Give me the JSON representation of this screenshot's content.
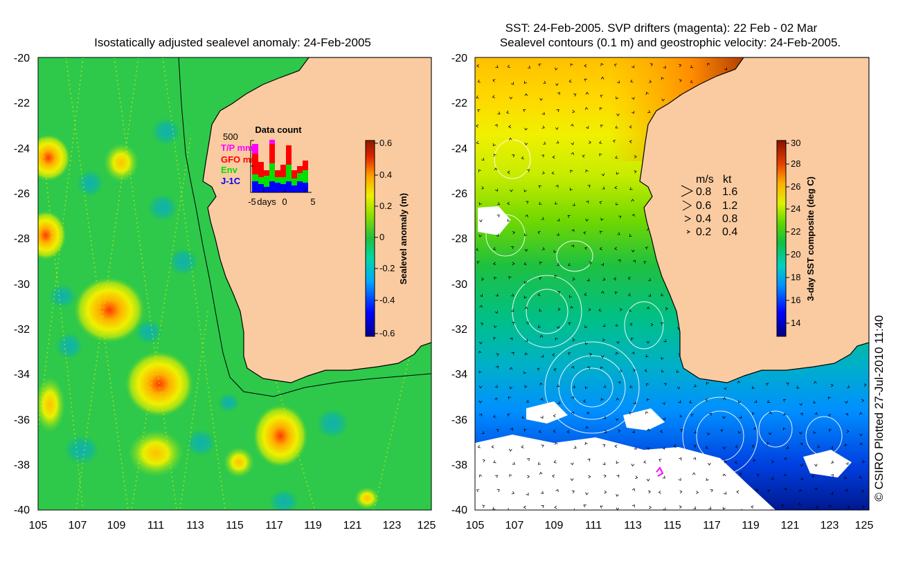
{
  "left_panel": {
    "title": "Isostatically adjusted sealevel anomaly: 24-Feb-2005",
    "lat_labels": [
      "-20",
      "-22",
      "-24",
      "-26",
      "-28",
      "-30",
      "-32",
      "-34",
      "-36",
      "-38",
      "-40"
    ],
    "lon_labels": [
      "105",
      "107",
      "109",
      "111",
      "113",
      "115",
      "117",
      "119",
      "121",
      "123",
      "125"
    ],
    "colorbar": {
      "label": "Sealevel anomaly (m)",
      "ticks": [
        "0.6",
        "0.4",
        "0.2",
        "0",
        "-0.2",
        "-0.4",
        "-0.6"
      ],
      "range": [
        -0.6,
        0.6
      ]
    },
    "inset": {
      "title": "Data count",
      "y_max_label": "500",
      "x_labels": [
        "-5",
        "days",
        "0",
        "5"
      ],
      "legend": [
        {
          "label": "T/P mm",
          "color": "#ff00ff"
        },
        {
          "label": "GFO mm",
          "color": "#ff0000"
        },
        {
          "label": "Env",
          "color": "#00e000"
        },
        {
          "label": "J-1C",
          "color": "#0000ff"
        }
      ]
    }
  },
  "right_panel": {
    "title_line1": "SST: 24-Feb-2005. SVP drifters (magenta): 22 Feb - 02 Mar",
    "title_line2": "Sealevel contours (0.1 m) and geostrophic velocity: 24-Feb-2005.",
    "lat_labels": [
      "-20",
      "-22",
      "-24",
      "-26",
      "-28",
      "-30",
      "-32",
      "-34",
      "-36",
      "-38",
      "-40"
    ],
    "lon_labels": [
      "105",
      "107",
      "109",
      "111",
      "113",
      "115",
      "117",
      "119",
      "121",
      "123",
      "125"
    ],
    "colorbar": {
      "label": "3-day SST composite (deg C)",
      "ticks": [
        "30",
        "28",
        "26",
        "24",
        "22",
        "20",
        "18",
        "16",
        "14"
      ],
      "range": [
        13,
        30
      ]
    },
    "velocity_legend": {
      "headers": [
        "m/s",
        "kt"
      ],
      "rows": [
        {
          "ms": "0.8",
          "kt": "1.6"
        },
        {
          "ms": "0.6",
          "kt": "1.2"
        },
        {
          "ms": "0.4",
          "kt": "0.8"
        },
        {
          "ms": "0.2",
          "kt": "0.4"
        }
      ]
    }
  },
  "credit": "© CSIRO Plotted 27-Jul-2010 11:40",
  "colors": {
    "land": "#facba0",
    "ocean_green": "#2ec94a",
    "drifter": "#ff00ff"
  }
}
